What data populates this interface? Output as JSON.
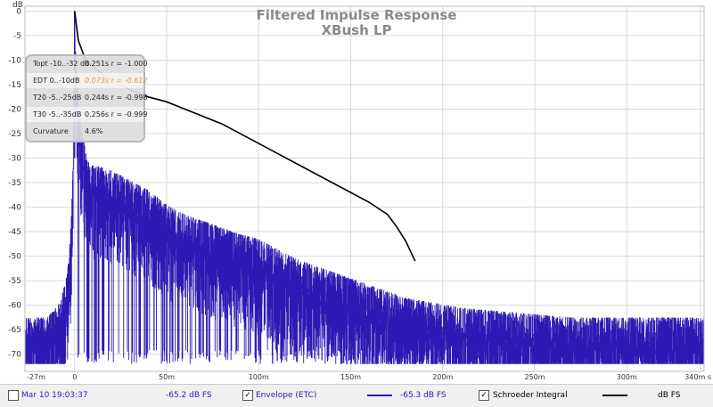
{
  "chart_data": {
    "type": "line",
    "title": "Filtered Impulse Response",
    "subtitle": "XBush LP",
    "ylabel": "dB",
    "xlim": [
      -0.027,
      0.342
    ],
    "ylim": [
      -73.5,
      1
    ],
    "x_ticks": [
      "-27m",
      "0",
      "50m",
      "100m",
      "150m",
      "200m",
      "250m",
      "300m",
      "340m s"
    ],
    "y_ticks": [
      "0",
      "-5",
      "-10",
      "-15",
      "-20",
      "-25",
      "-30",
      "-35",
      "-40",
      "-45",
      "-50",
      "-55",
      "-60",
      "-65",
      "-70"
    ],
    "series": [
      {
        "name": "Envelope (ETC)",
        "color": "#2d1ab4",
        "envelope_top": {
          "x": [
            -0.027,
            -0.015,
            -0.008,
            -0.004,
            -0.002,
            -0.0008,
            0.0,
            0.001,
            0.003,
            0.006,
            0.008,
            0.012,
            0.02,
            0.03,
            0.04,
            0.05,
            0.06,
            0.075,
            0.09,
            0.1,
            0.12,
            0.15,
            0.18,
            0.21,
            0.24,
            0.27,
            0.3,
            0.342
          ],
          "y": [
            -64,
            -64,
            -61,
            -55,
            -45,
            -30,
            0,
            -12,
            -24,
            -30,
            -33,
            -33,
            -34,
            -36,
            -38,
            -41,
            -43,
            -45,
            -47,
            -48,
            -52,
            -56,
            -60,
            -62,
            -63,
            -64,
            -64,
            -64
          ]
        },
        "floor": -72
      },
      {
        "name": "Schroeder Integral",
        "color": "#000000",
        "x": [
          0.0,
          0.002,
          0.006,
          0.012,
          0.02,
          0.03,
          0.04,
          0.05,
          0.06,
          0.07,
          0.08,
          0.09,
          0.1,
          0.11,
          0.12,
          0.13,
          0.14,
          0.15,
          0.16,
          0.17,
          0.175,
          0.18,
          0.185
        ],
        "y": [
          0,
          -6,
          -10,
          -12,
          -14,
          -16,
          -17.5,
          -18.5,
          -20,
          -21.5,
          -23,
          -25,
          -27,
          -29,
          -31,
          -33,
          -35,
          -37,
          -39,
          -41.5,
          -44,
          -47,
          -51
        ]
      }
    ],
    "metrics": [
      {
        "label": "Topt -10..-32 dB",
        "value": "0.251s  r = -1.000",
        "highlight": false
      },
      {
        "label": "EDT  0..-10dB",
        "value": "0.073s  r = -0.612",
        "highlight": true
      },
      {
        "label": "T20 -5..-25dB",
        "value": "0.244s  r = -0.998",
        "highlight": false
      },
      {
        "label": "T30 -5..-35dB",
        "value": "0.256s  r = -0.999",
        "highlight": false
      },
      {
        "label": "Curvature",
        "value": "4.6%",
        "highlight": false
      }
    ],
    "grid": true,
    "legend_position": "bottom"
  },
  "legend": {
    "timestamp": "Mar 10 19:03:37",
    "envelope_value": "-65.2 dB FS",
    "envelope_label": "Envelope (ETC)",
    "schroeder_value": "-65.3 dB FS",
    "schroeder_label": "Schroeder Integral",
    "black_value": "dB FS",
    "check_mark": "✓"
  },
  "colors": {
    "envelope": "#2d1ab4",
    "schroeder": "#000000",
    "grid": "#d7d7d7"
  }
}
